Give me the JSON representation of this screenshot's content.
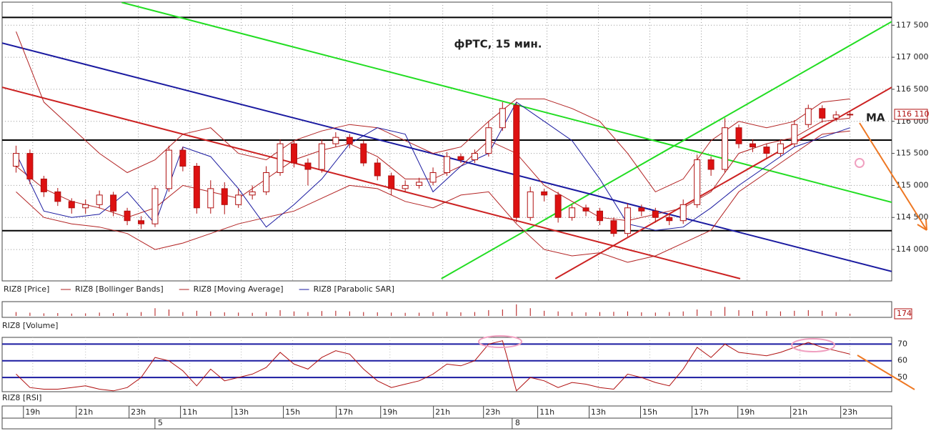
{
  "chart_data": [
    {
      "type": "candlestick",
      "title": "фРТС, 15 мин.",
      "annotation": "MA",
      "price_name": "RIZ8 [Price]",
      "last_label": "116 110",
      "xlim": [
        -1,
        63
      ],
      "ylim": [
        113510,
        117860
      ],
      "yticks": [
        {
          "value": 114000,
          "label": "114 000"
        },
        {
          "value": 114500,
          "label": "114 500"
        },
        {
          "value": 115000,
          "label": "115 000"
        },
        {
          "value": 115500,
          "label": "115 500"
        },
        {
          "value": 116000,
          "label": "116 000"
        },
        {
          "value": 116500,
          "label": "116 500"
        },
        {
          "value": 117000,
          "label": "117 000"
        },
        {
          "value": 117500,
          "label": "117 500"
        }
      ],
      "grid": true,
      "up_color": "#ffffff",
      "down_color": "#dd1111",
      "edge_color": "#b01010",
      "open": [
        115300,
        115500,
        115100,
        114900,
        114750,
        114650,
        114700,
        114850,
        114600,
        114450,
        114400,
        114950,
        115550,
        115300,
        114650,
        114950,
        114700,
        114850,
        114900,
        115200,
        115650,
        115350,
        115250,
        115650,
        115750,
        115650,
        115350,
        115150,
        114950,
        115000,
        115050,
        115200,
        115450,
        115400,
        115500,
        115900,
        116250,
        114500,
        114900,
        114850,
        114500,
        114650,
        114600,
        114450,
        114250,
        114650,
        114600,
        114500,
        114450,
        114700,
        115400,
        115250,
        115900,
        115650,
        115600,
        115500,
        115650,
        115950,
        116200,
        116050,
        116100
      ],
      "high": [
        115620,
        115560,
        115150,
        114960,
        114800,
        114780,
        114920,
        114900,
        114650,
        114520,
        115000,
        115620,
        115600,
        115350,
        115080,
        115050,
        114950,
        115000,
        115300,
        115720,
        115700,
        115420,
        115720,
        115830,
        115800,
        115700,
        115420,
        115200,
        115080,
        115120,
        115280,
        115520,
        115500,
        115560,
        116000,
        116300,
        116300,
        114980,
        114950,
        114900,
        114700,
        114700,
        114650,
        114500,
        114720,
        114700,
        114650,
        114560,
        114780,
        115480,
        115450,
        116050,
        115950,
        115720,
        115650,
        115720,
        116020,
        116260,
        116250,
        116160,
        116160
      ],
      "low": [
        115200,
        115020,
        114820,
        114680,
        114560,
        114560,
        114640,
        114520,
        114380,
        114320,
        114350,
        114900,
        115220,
        114560,
        114560,
        114550,
        114650,
        114780,
        114850,
        115150,
        115280,
        115000,
        115200,
        115600,
        115580,
        115300,
        115080,
        114850,
        114900,
        114950,
        115000,
        115150,
        115350,
        115350,
        115450,
        115850,
        114420,
        114450,
        114750,
        114420,
        114450,
        114520,
        114380,
        114200,
        114200,
        114520,
        114420,
        114380,
        114400,
        114650,
        115150,
        115200,
        115580,
        115520,
        115420,
        115450,
        115600,
        115900,
        115980,
        116000,
        116050
      ],
      "close": [
        115500,
        115100,
        114900,
        114750,
        114650,
        114700,
        114850,
        114600,
        114450,
        114400,
        114950,
        115550,
        115300,
        114650,
        114950,
        114700,
        114850,
        114900,
        115200,
        115650,
        115350,
        115250,
        115650,
        115750,
        115650,
        115350,
        115150,
        114950,
        115000,
        115050,
        115200,
        115450,
        115400,
        115500,
        115900,
        116200,
        114500,
        114900,
        114850,
        114500,
        114650,
        114600,
        114450,
        114250,
        114650,
        114600,
        114500,
        114450,
        114700,
        115400,
        115250,
        115900,
        115650,
        115600,
        115500,
        115650,
        115950,
        116200,
        116050,
        116100,
        116110
      ],
      "indicator_x": [
        0,
        2,
        4,
        6,
        8,
        10,
        12,
        14,
        16,
        18,
        20,
        22,
        24,
        26,
        28,
        30,
        32,
        34,
        36,
        38,
        40,
        42,
        44,
        46,
        48,
        50,
        52,
        54,
        56,
        58,
        60
      ],
      "series": [
        {
          "name": "RIZ8 [Bollinger Bands]",
          "color": "#b22222",
          "upper": [
            117400,
            116300,
            115900,
            115500,
            115200,
            115400,
            115800,
            115900,
            115500,
            115400,
            115700,
            115850,
            115950,
            115900,
            115700,
            115500,
            115600,
            116000,
            116350,
            116350,
            116200,
            116000,
            115500,
            114900,
            115100,
            115700,
            116000,
            115900,
            116000,
            116300,
            116350
          ],
          "lower": [
            114900,
            114500,
            114400,
            114350,
            114250,
            114000,
            114100,
            114250,
            114400,
            114500,
            114600,
            114800,
            115000,
            114950,
            114750,
            114650,
            114850,
            114900,
            114400,
            114000,
            113900,
            113950,
            113800,
            113900,
            114100,
            114300,
            114900,
            115200,
            115500,
            115800,
            115850
          ]
        },
        {
          "name": "RIZ8 [Moving Average]",
          "color": "#b22222",
          "values": [
            115300,
            114950,
            114750,
            114650,
            114500,
            114650,
            115000,
            114900,
            114800,
            115100,
            115400,
            115550,
            115650,
            115450,
            115100,
            115100,
            115300,
            115700,
            115500,
            115000,
            114750,
            114500,
            114450,
            114550,
            114650,
            114900,
            115500,
            115650,
            115750,
            116000,
            116050
          ]
        },
        {
          "name": "RIZ8 [Parabolic SAR]",
          "color": "#1a1aa0",
          "values": [
            115500,
            114600,
            114500,
            114550,
            114900,
            114400,
            115600,
            115450,
            114950,
            114350,
            114700,
            115100,
            115650,
            115900,
            115800,
            114900,
            115300,
            115500,
            116300,
            116000,
            115700,
            115100,
            114400,
            114300,
            114350,
            114650,
            115000,
            115300,
            115600,
            115750,
            115900
          ]
        }
      ],
      "lines": [
        {
          "color": "#000000",
          "x": [
            -1,
            63
          ],
          "y": [
            117622,
            117622
          ]
        },
        {
          "color": "#000000",
          "x": [
            -1,
            63
          ],
          "y": [
            115707,
            115707
          ]
        },
        {
          "color": "#000000",
          "x": [
            -1,
            63
          ],
          "y": [
            114293,
            114293
          ]
        },
        {
          "color": "#22dd22",
          "x": [
            7.6,
            63
          ],
          "y": [
            117856,
            114737
          ]
        },
        {
          "color": "#22dd22",
          "x": [
            30.6,
            63
          ],
          "y": [
            113545,
            117556
          ]
        },
        {
          "color": "#1a1aa0",
          "x": [
            -1,
            63
          ],
          "y": [
            117222,
            113657
          ]
        },
        {
          "color": "#cc2222",
          "x": [
            -1,
            52.1
          ],
          "y": [
            116531,
            113545
          ]
        },
        {
          "color": "#cc2222",
          "x": [
            38.8,
            63
          ],
          "y": [
            113545,
            116531
          ]
        }
      ]
    },
    {
      "type": "bar",
      "name": "RIZ8 [Volume]",
      "color": "#b01010",
      "ylim": [
        0,
        1000
      ],
      "values": [
        300,
        250,
        200,
        220,
        180,
        200,
        260,
        220,
        240,
        300,
        600,
        500,
        300,
        400,
        350,
        280,
        260,
        240,
        300,
        450,
        350,
        300,
        380,
        400,
        350,
        300,
        280,
        260,
        240,
        250,
        300,
        320,
        280,
        300,
        450,
        500,
        900,
        600,
        400,
        350,
        300,
        280,
        300,
        320,
        350,
        280,
        260,
        300,
        350,
        500,
        400,
        700,
        450,
        400,
        380,
        350,
        400,
        450,
        400,
        300,
        174
      ]
    },
    {
      "type": "line",
      "name": "RIZ8 [RSI]",
      "color": "#b01010",
      "level_color": "#1a1aa0",
      "ylim": [
        41.5,
        74
      ],
      "yticks": [
        50,
        60,
        70
      ],
      "values": [
        52,
        44,
        43,
        43,
        44,
        45,
        43,
        42,
        44,
        50,
        62,
        60,
        54,
        45,
        55,
        48,
        50,
        52,
        56,
        65,
        58,
        55,
        62,
        66,
        64,
        55,
        48,
        44,
        46,
        48,
        52,
        58,
        57,
        60,
        70,
        72,
        42,
        50,
        48,
        44,
        47,
        46,
        44,
        43,
        52,
        50,
        47,
        45,
        55,
        68,
        62,
        70,
        65,
        64,
        63,
        65,
        68,
        71,
        68,
        66,
        64
      ],
      "xticks": [
        {
          "value": 1.2,
          "label": "19h"
        },
        {
          "value": 5.0,
          "label": "21h"
        },
        {
          "value": 8.8,
          "label": "23h"
        },
        {
          "value": 12.5,
          "label": "11h"
        },
        {
          "value": 16.2,
          "label": "13h"
        },
        {
          "value": 19.9,
          "label": "15h"
        },
        {
          "value": 23.7,
          "label": "17h"
        },
        {
          "value": 26.9,
          "label": "19h"
        },
        {
          "value": 30.7,
          "label": "21h"
        },
        {
          "value": 34.3,
          "label": "23h"
        },
        {
          "value": 38.2,
          "label": "11h"
        },
        {
          "value": 41.9,
          "label": "13h"
        },
        {
          "value": 45.6,
          "label": "15h"
        },
        {
          "value": 49.3,
          "label": "17h"
        },
        {
          "value": 52.6,
          "label": "19h"
        },
        {
          "value": 56.4,
          "label": "21h"
        },
        {
          "value": 60.0,
          "label": "23h"
        }
      ],
      "day_ticks": [
        {
          "value": 10.2,
          "label": "5"
        },
        {
          "value": 35.9,
          "label": "8"
        }
      ]
    }
  ]
}
